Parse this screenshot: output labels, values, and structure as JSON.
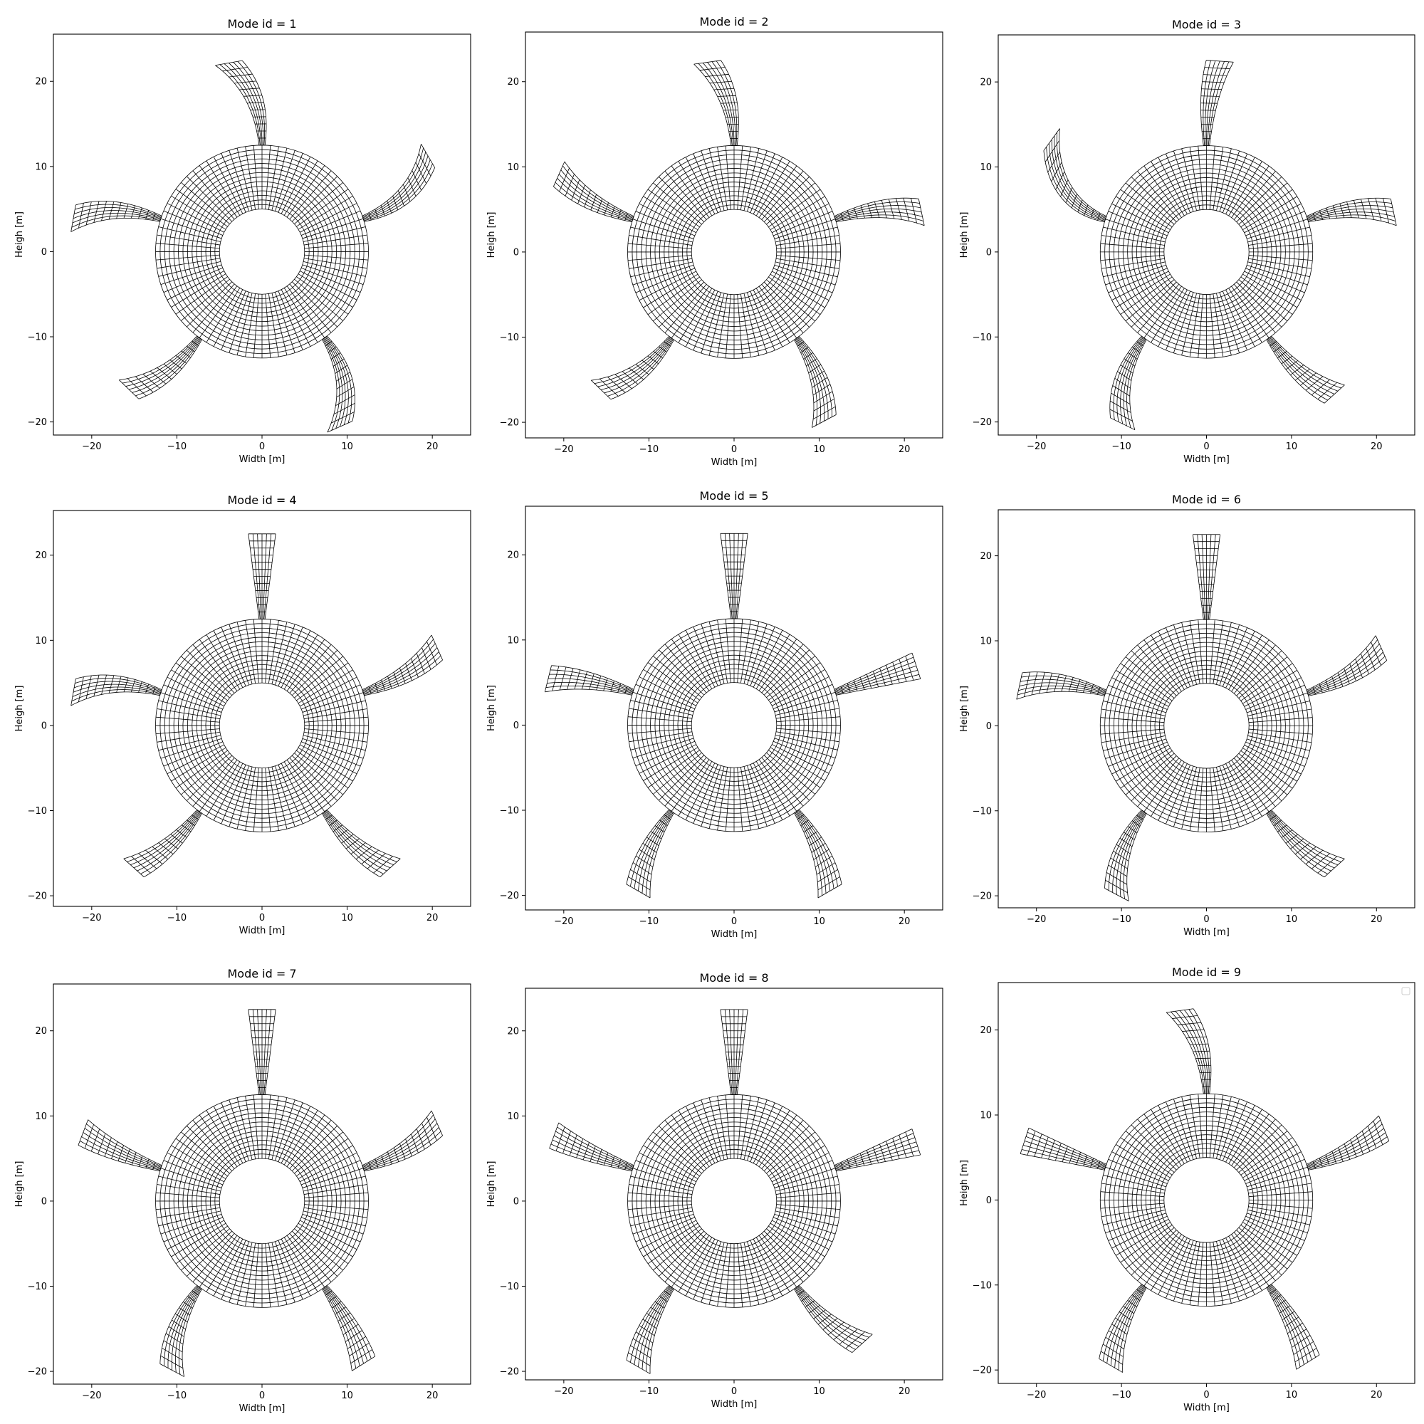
{
  "figure": {
    "mesh_color": "#000000",
    "background": "#ffffff"
  },
  "chart_data": [
    {
      "type": "mesh",
      "title": "Mode id = 1",
      "xlabel": "Width [m]",
      "ylabel": "Heigh [m]",
      "xlim": [
        -24.5,
        24.5
      ],
      "ylim": [
        -21,
        25
      ],
      "xticks": [
        -20,
        -10,
        0,
        10,
        20
      ],
      "yticks": [
        -20,
        -10,
        0,
        10,
        20
      ],
      "inner_radius": 5,
      "outer_radius": 12.5,
      "arm_length": 22.5,
      "arm_angles_deg": [
        90,
        162,
        234,
        306,
        18
      ],
      "arm_bend_deg": [
        10,
        8,
        -8,
        -12,
        12
      ],
      "show_legend": false
    },
    {
      "type": "mesh",
      "title": "Mode id = 2",
      "xlabel": "Width [m]",
      "ylabel": "Heigh [m]",
      "xlim": [
        -24.5,
        24.5
      ],
      "ylim": [
        -21,
        25
      ],
      "xticks": [
        -20,
        -10,
        0,
        10,
        20
      ],
      "yticks": [
        -20,
        -10,
        0,
        10,
        20
      ],
      "inner_radius": 5,
      "outer_radius": 12.5,
      "arm_length": 22.5,
      "arm_angles_deg": [
        90,
        162,
        234,
        306,
        18
      ],
      "arm_bend_deg": [
        8,
        -6,
        -8,
        -8,
        -6
      ],
      "show_legend": false
    },
    {
      "type": "mesh",
      "title": "Mode id = 3",
      "xlabel": "Width [m]",
      "ylabel": "Heigh [m]",
      "xlim": [
        -24.5,
        24.5
      ],
      "ylim": [
        -21,
        25
      ],
      "xticks": [
        -20,
        -10,
        0,
        10,
        20
      ],
      "yticks": [
        -20,
        -10,
        0,
        10,
        20
      ],
      "inner_radius": 5,
      "outer_radius": 12.5,
      "arm_length": 22.5,
      "arm_angles_deg": [
        90,
        162,
        234,
        306,
        18
      ],
      "arm_bend_deg": [
        -4,
        -18,
        10,
        6,
        -6
      ],
      "show_legend": false
    },
    {
      "type": "mesh",
      "title": "Mode id = 4",
      "xlabel": "Width [m]",
      "ylabel": "Heigh [m]",
      "xlim": [
        -24.5,
        24.5
      ],
      "ylim": [
        -21,
        25
      ],
      "xticks": [
        -20,
        -10,
        0,
        10,
        20
      ],
      "yticks": [
        -20,
        -10,
        0,
        10,
        20
      ],
      "inner_radius": 5,
      "outer_radius": 12.5,
      "arm_length": 22.5,
      "arm_angles_deg": [
        90,
        162,
        234,
        306,
        18
      ],
      "arm_bend_deg": [
        0,
        8,
        -6,
        6,
        6
      ],
      "show_legend": false
    },
    {
      "type": "mesh",
      "title": "Mode id = 5",
      "xlabel": "Width [m]",
      "ylabel": "Heigh [m]",
      "xlim": [
        -24.5,
        24.5
      ],
      "ylim": [
        -21,
        25
      ],
      "xticks": [
        -20,
        -10,
        0,
        10,
        20
      ],
      "yticks": [
        -20,
        -10,
        0,
        10,
        20
      ],
      "inner_radius": 5,
      "outer_radius": 12.5,
      "arm_length": 22.5,
      "arm_angles_deg": [
        90,
        162,
        234,
        306,
        18
      ],
      "arm_bend_deg": [
        0,
        4,
        6,
        -6,
        0
      ],
      "show_legend": false
    },
    {
      "type": "mesh",
      "title": "Mode id = 6",
      "xlabel": "Width [m]",
      "ylabel": "Heigh [m]",
      "xlim": [
        -24.5,
        24.5
      ],
      "ylim": [
        -21,
        25
      ],
      "xticks": [
        -20,
        -10,
        0,
        10,
        20
      ],
      "yticks": [
        -20,
        -10,
        0,
        10,
        20
      ],
      "inner_radius": 5,
      "outer_radius": 12.5,
      "arm_length": 22.5,
      "arm_angles_deg": [
        90,
        162,
        234,
        306,
        18
      ],
      "arm_bend_deg": [
        0,
        6,
        8,
        6,
        6
      ],
      "show_legend": false
    },
    {
      "type": "mesh",
      "title": "Mode id = 7",
      "xlabel": "Width [m]",
      "ylabel": "Heigh [m]",
      "xlim": [
        -24.5,
        24.5
      ],
      "ylim": [
        -21,
        25
      ],
      "xticks": [
        -20,
        -10,
        0,
        10,
        20
      ],
      "yticks": [
        -20,
        -10,
        0,
        10,
        20
      ],
      "inner_radius": 5,
      "outer_radius": 12.5,
      "arm_length": 22.5,
      "arm_angles_deg": [
        90,
        162,
        234,
        306,
        18
      ],
      "arm_bend_deg": [
        0,
        -3,
        8,
        -4,
        6
      ],
      "show_legend": false
    },
    {
      "type": "mesh",
      "title": "Mode id = 8",
      "xlabel": "Width [m]",
      "ylabel": "Heigh [m]",
      "xlim": [
        -24.5,
        24.5
      ],
      "ylim": [
        -21,
        25
      ],
      "xticks": [
        -20,
        -10,
        0,
        10,
        20
      ],
      "yticks": [
        -20,
        -10,
        0,
        10,
        20
      ],
      "inner_radius": 5,
      "outer_radius": 12.5,
      "arm_length": 22.5,
      "arm_angles_deg": [
        90,
        162,
        234,
        306,
        18
      ],
      "arm_bend_deg": [
        0,
        -2,
        6,
        6,
        0
      ],
      "show_legend": false
    },
    {
      "type": "mesh",
      "title": "Mode id = 9",
      "xlabel": "Width [m]",
      "ylabel": "Heigh [m]",
      "xlim": [
        -24.5,
        24.5
      ],
      "ylim": [
        -21,
        25
      ],
      "xticks": [
        -20,
        -10,
        0,
        10,
        20
      ],
      "yticks": [
        -20,
        -10,
        0,
        10,
        20
      ],
      "inner_radius": 5,
      "outer_radius": 12.5,
      "arm_length": 22.5,
      "arm_angles_deg": [
        90,
        162,
        234,
        306,
        18
      ],
      "arm_bend_deg": [
        8,
        0,
        6,
        -4,
        4
      ],
      "show_legend": true,
      "legend_loc": "upper right"
    }
  ]
}
